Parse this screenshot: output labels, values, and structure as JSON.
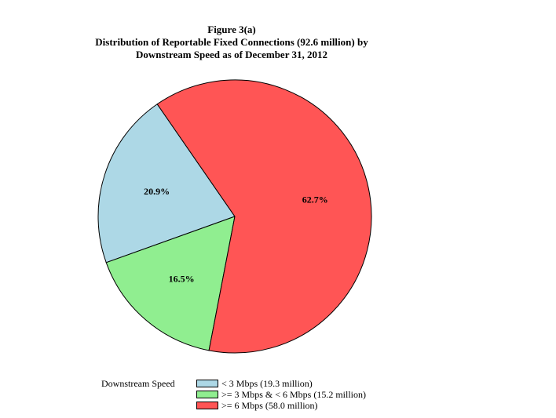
{
  "chart_data": {
    "type": "pie",
    "title": "Figure 3(a)",
    "subtitle": [
      "Distribution of Reportable Fixed Connections (92.6 million) by",
      "Downstream Speed as of December 31, 2012"
    ],
    "legend_title": "Downstream Speed",
    "legend_placement": "bottom",
    "slices": [
      {
        "label": "< 3 Mbps (19.3 million)",
        "value": 20.9,
        "value_label": "20.9%",
        "color": "#add8e6"
      },
      {
        "label": ">= 3 Mbps & < 6 Mbps (15.2 million)",
        "value": 16.5,
        "value_label": "16.5%",
        "color": "#90ee90"
      },
      {
        "label": ">= 6 Mbps (58.0 million)",
        "value": 62.7,
        "value_label": "62.7%",
        "color": "#ff5555"
      }
    ]
  }
}
